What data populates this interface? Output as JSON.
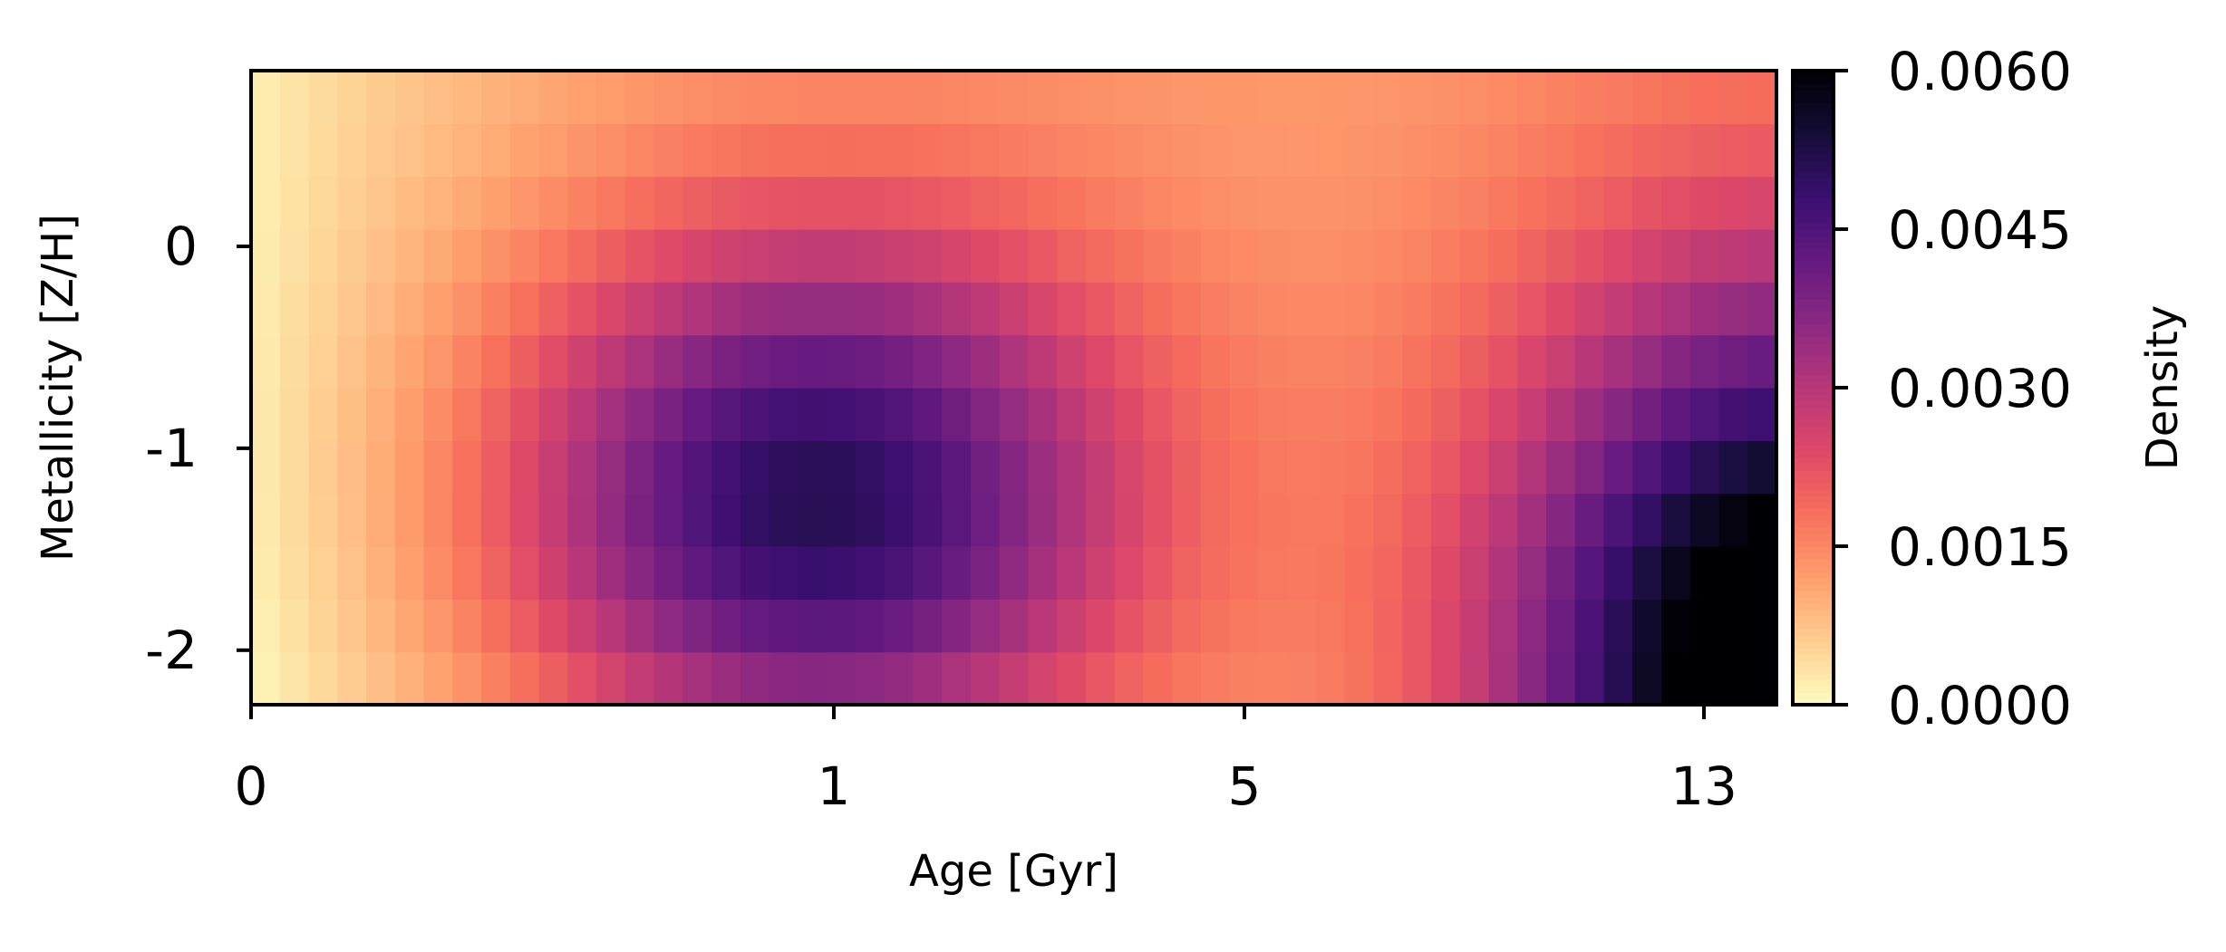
{
  "chart_data": {
    "type": "heatmap",
    "title": "",
    "xlabel": "Age [Gyr]",
    "ylabel": "Metallicity [Z/H]",
    "colorbar_label": "Density",
    "colormap": "magma_r",
    "x_tick_labels": [
      {
        "label": "0",
        "value": 0
      },
      {
        "label": "1",
        "value": 1
      },
      {
        "label": "5",
        "value": 5
      },
      {
        "label": "13",
        "value": 13
      }
    ],
    "y_tick_labels": [
      {
        "label": "0",
        "value": 0
      },
      {
        "label": "-1",
        "value": -1
      },
      {
        "label": "-2",
        "value": -2
      }
    ],
    "colorbar_ticks": [
      {
        "label": "0.0060",
        "value": 0.006
      },
      {
        "label": "0.0045",
        "value": 0.0045
      },
      {
        "label": "0.0030",
        "value": 0.003
      },
      {
        "label": "0.0015",
        "value": 0.0015
      },
      {
        "label": "0.0000",
        "value": 0.0
      }
    ],
    "color_range": [
      0.0,
      0.006
    ],
    "grid": false,
    "n_age_bins": 53,
    "n_metallicity_bins": 12,
    "metallicity_edges": [
      -2.27,
      0.87
    ],
    "density_model": {
      "description": "smooth density over age bins (left to right) and metallicity bins (bottom to top)",
      "components": [
        {
          "age_bin_center": 19,
          "metallicity_bin_center": 3.3,
          "amplitude": 0.0041,
          "age_width": 7.5,
          "metallicity_width": 3.6
        },
        {
          "age_bin_center": 53,
          "metallicity_bin_center": 0.0,
          "amplitude": 0.0058,
          "age_width": 7.0,
          "metallicity_width": 5.2
        }
      ],
      "background": {
        "left_value": 5e-05,
        "rise_start_bin": 0,
        "rise_scale_bins": 9,
        "plateau_value": 0.0011,
        "row_variation": 0.00015
      }
    }
  }
}
